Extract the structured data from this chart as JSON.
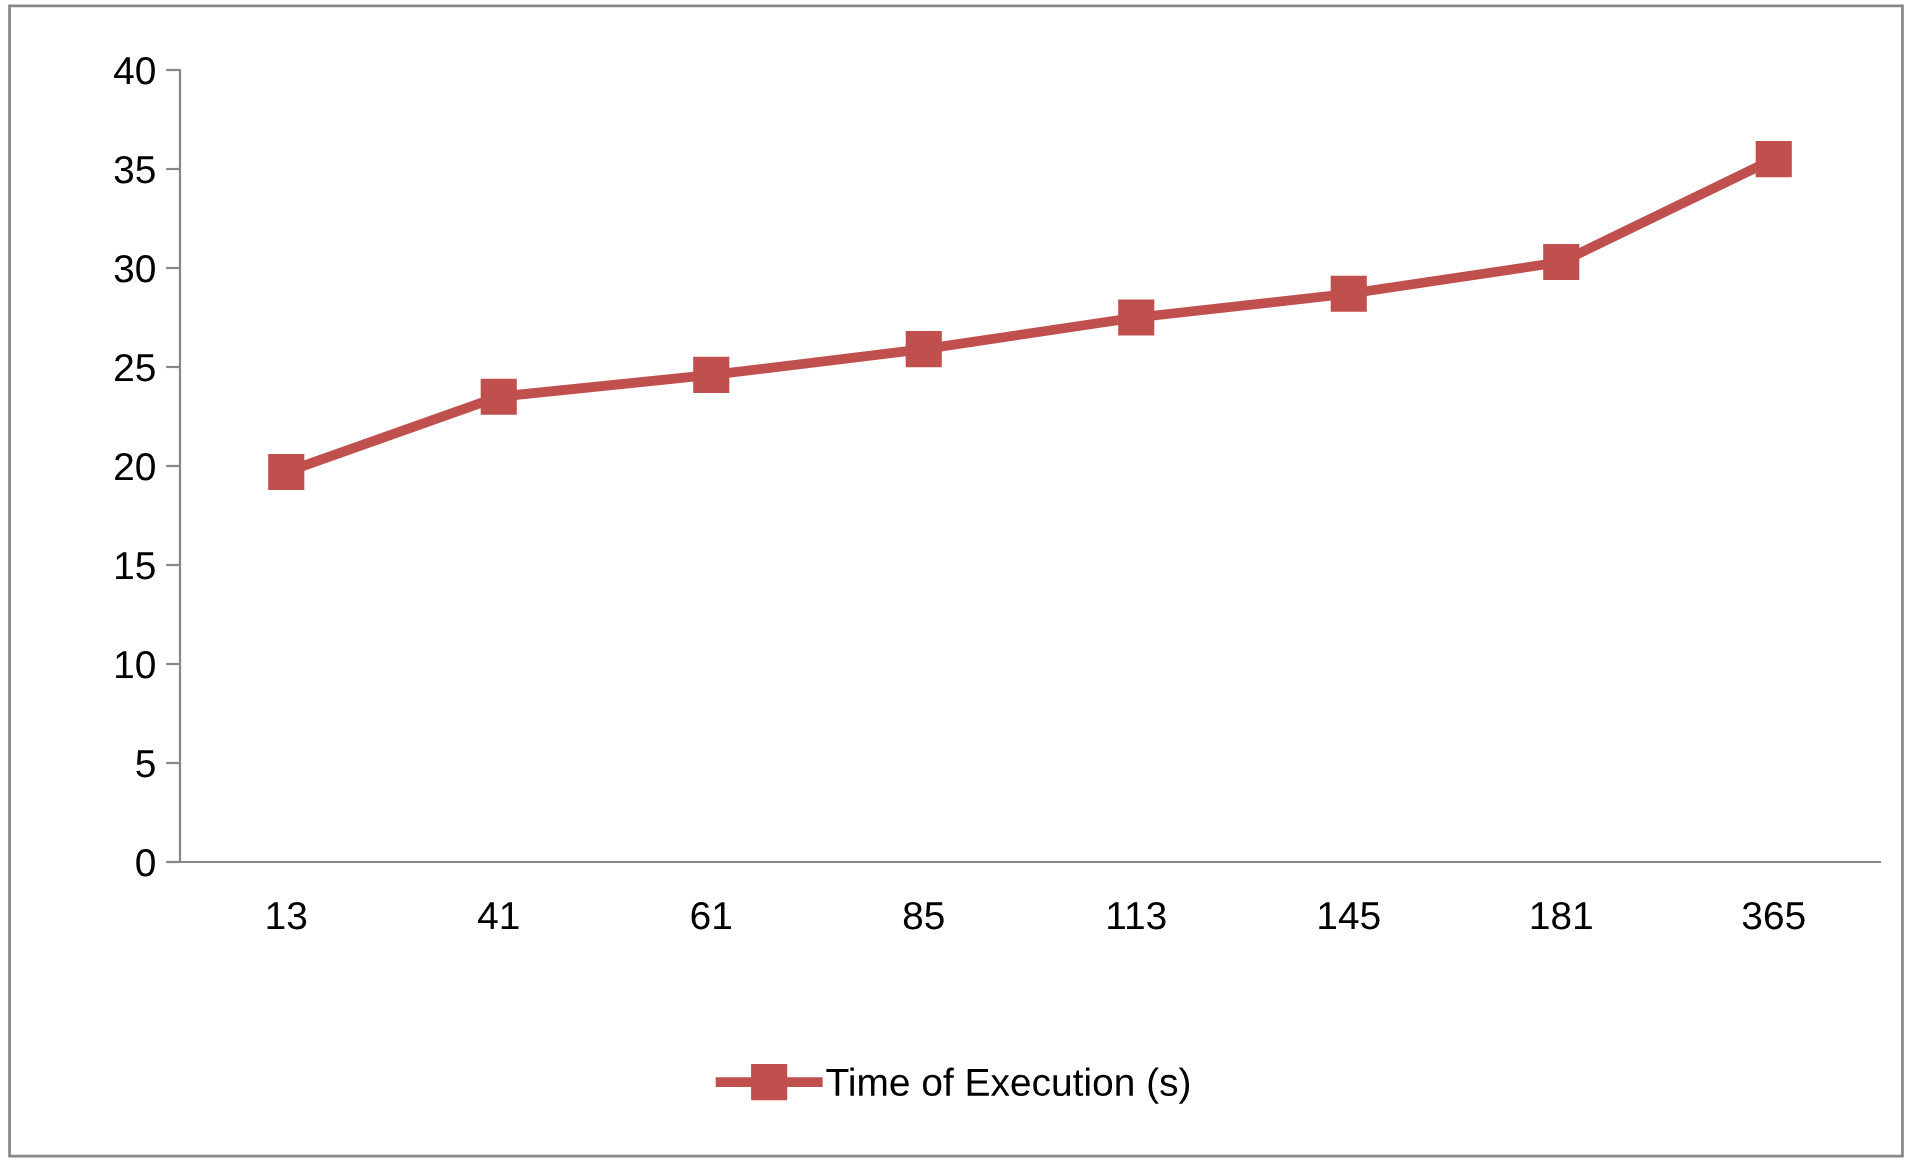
{
  "chart_data": {
    "type": "line",
    "categories": [
      "13",
      "41",
      "61",
      "85",
      "113",
      "145",
      "181",
      "365"
    ],
    "series": [
      {
        "name": "Time of Execution (s)",
        "color": "#c0504d",
        "values": [
          19.7,
          23.5,
          24.6,
          25.9,
          27.5,
          28.7,
          30.3,
          35.5
        ]
      }
    ],
    "ylim": [
      0,
      40
    ],
    "yticks": [
      0,
      5,
      10,
      15,
      20,
      25,
      30,
      35,
      40
    ],
    "grid": false,
    "legend": "bottom",
    "marker": "square",
    "line_style": "solid"
  }
}
